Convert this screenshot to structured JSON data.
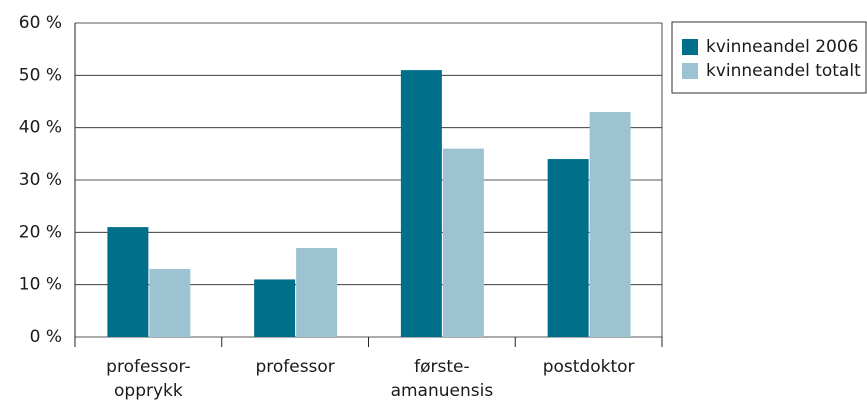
{
  "chart_data": {
    "type": "bar",
    "categories": [
      [
        "professor-",
        "opprykk"
      ],
      [
        "professor"
      ],
      [
        "første-",
        "amanuensis"
      ],
      [
        "postdoktor"
      ]
    ],
    "series": [
      {
        "name": "kvinneandel 2006",
        "color": "#00708a",
        "values": [
          21,
          11,
          51,
          34
        ]
      },
      {
        "name": "kvinneandel totalt",
        "color": "#9dc3d3",
        "values": [
          13,
          17,
          36,
          43
        ]
      }
    ],
    "ylim": [
      0,
      60
    ],
    "yticks": [
      {
        "value": 0,
        "label": "0 %"
      },
      {
        "value": 10,
        "label": "10 %"
      },
      {
        "value": 20,
        "label": "20 %"
      },
      {
        "value": 30,
        "label": "30 %"
      },
      {
        "value": 40,
        "label": "40 %"
      },
      {
        "value": 50,
        "label": "50 %"
      },
      {
        "value": 60,
        "label": "60 %"
      }
    ],
    "grid": true,
    "legend": "right"
  }
}
